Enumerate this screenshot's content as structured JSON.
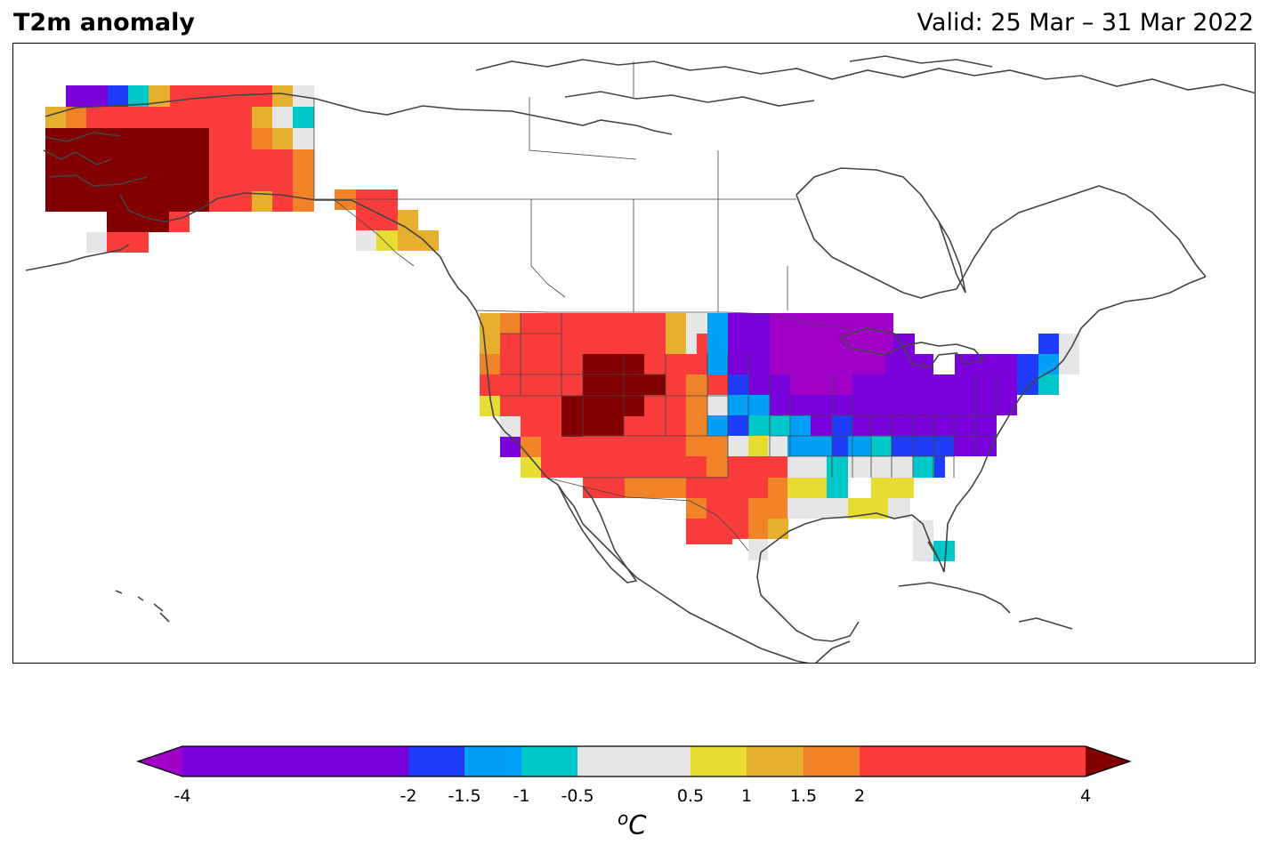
{
  "title": "T2m anomaly",
  "valid": "Valid: 25 Mar – 31 Mar 2022",
  "colorbar": {
    "ticks": [
      "-4",
      "-2",
      "-1.5",
      "-1",
      "-0.5",
      "0.5",
      "1",
      "1.5",
      "2",
      "4"
    ],
    "unit_symbol": "o",
    "unit_letter": "C",
    "bins": [
      {
        "range": [
          -4,
          -2
        ],
        "color": "#7a00dc"
      },
      {
        "range": [
          -2,
          -1.5
        ],
        "color": "#1f3cf8"
      },
      {
        "range": [
          -1.5,
          -1
        ],
        "color": "#00a0f8"
      },
      {
        "range": [
          -1,
          -0.5
        ],
        "color": "#00c8c8"
      },
      {
        "range": [
          -0.5,
          0.5
        ],
        "color": "#e6e6e6"
      },
      {
        "range": [
          0.5,
          1
        ],
        "color": "#e6dc32"
      },
      {
        "range": [
          1,
          1.5
        ],
        "color": "#e6af2d"
      },
      {
        "range": [
          1.5,
          2
        ],
        "color": "#f08228"
      },
      {
        "range": [
          2,
          4
        ],
        "color": "#fa3c3c"
      }
    ],
    "under_color": "#a000c8",
    "over_color": "#820000"
  },
  "map": {
    "region": "North America",
    "land_line_color": "#444444",
    "regions": [
      {
        "name": "Alaska",
        "anomaly": "very warm"
      },
      {
        "name": "Western US",
        "anomaly": "warm"
      },
      {
        "name": "Great Basin / Rockies",
        "anomaly": "very warm"
      },
      {
        "name": "Midwest / Great Lakes",
        "anomaly": "cold"
      },
      {
        "name": "Northeast US",
        "anomaly": "cold"
      },
      {
        "name": "Southeast US",
        "anomaly": "near normal"
      },
      {
        "name": "Texas / Southern Plains",
        "anomaly": "warm"
      }
    ]
  }
}
